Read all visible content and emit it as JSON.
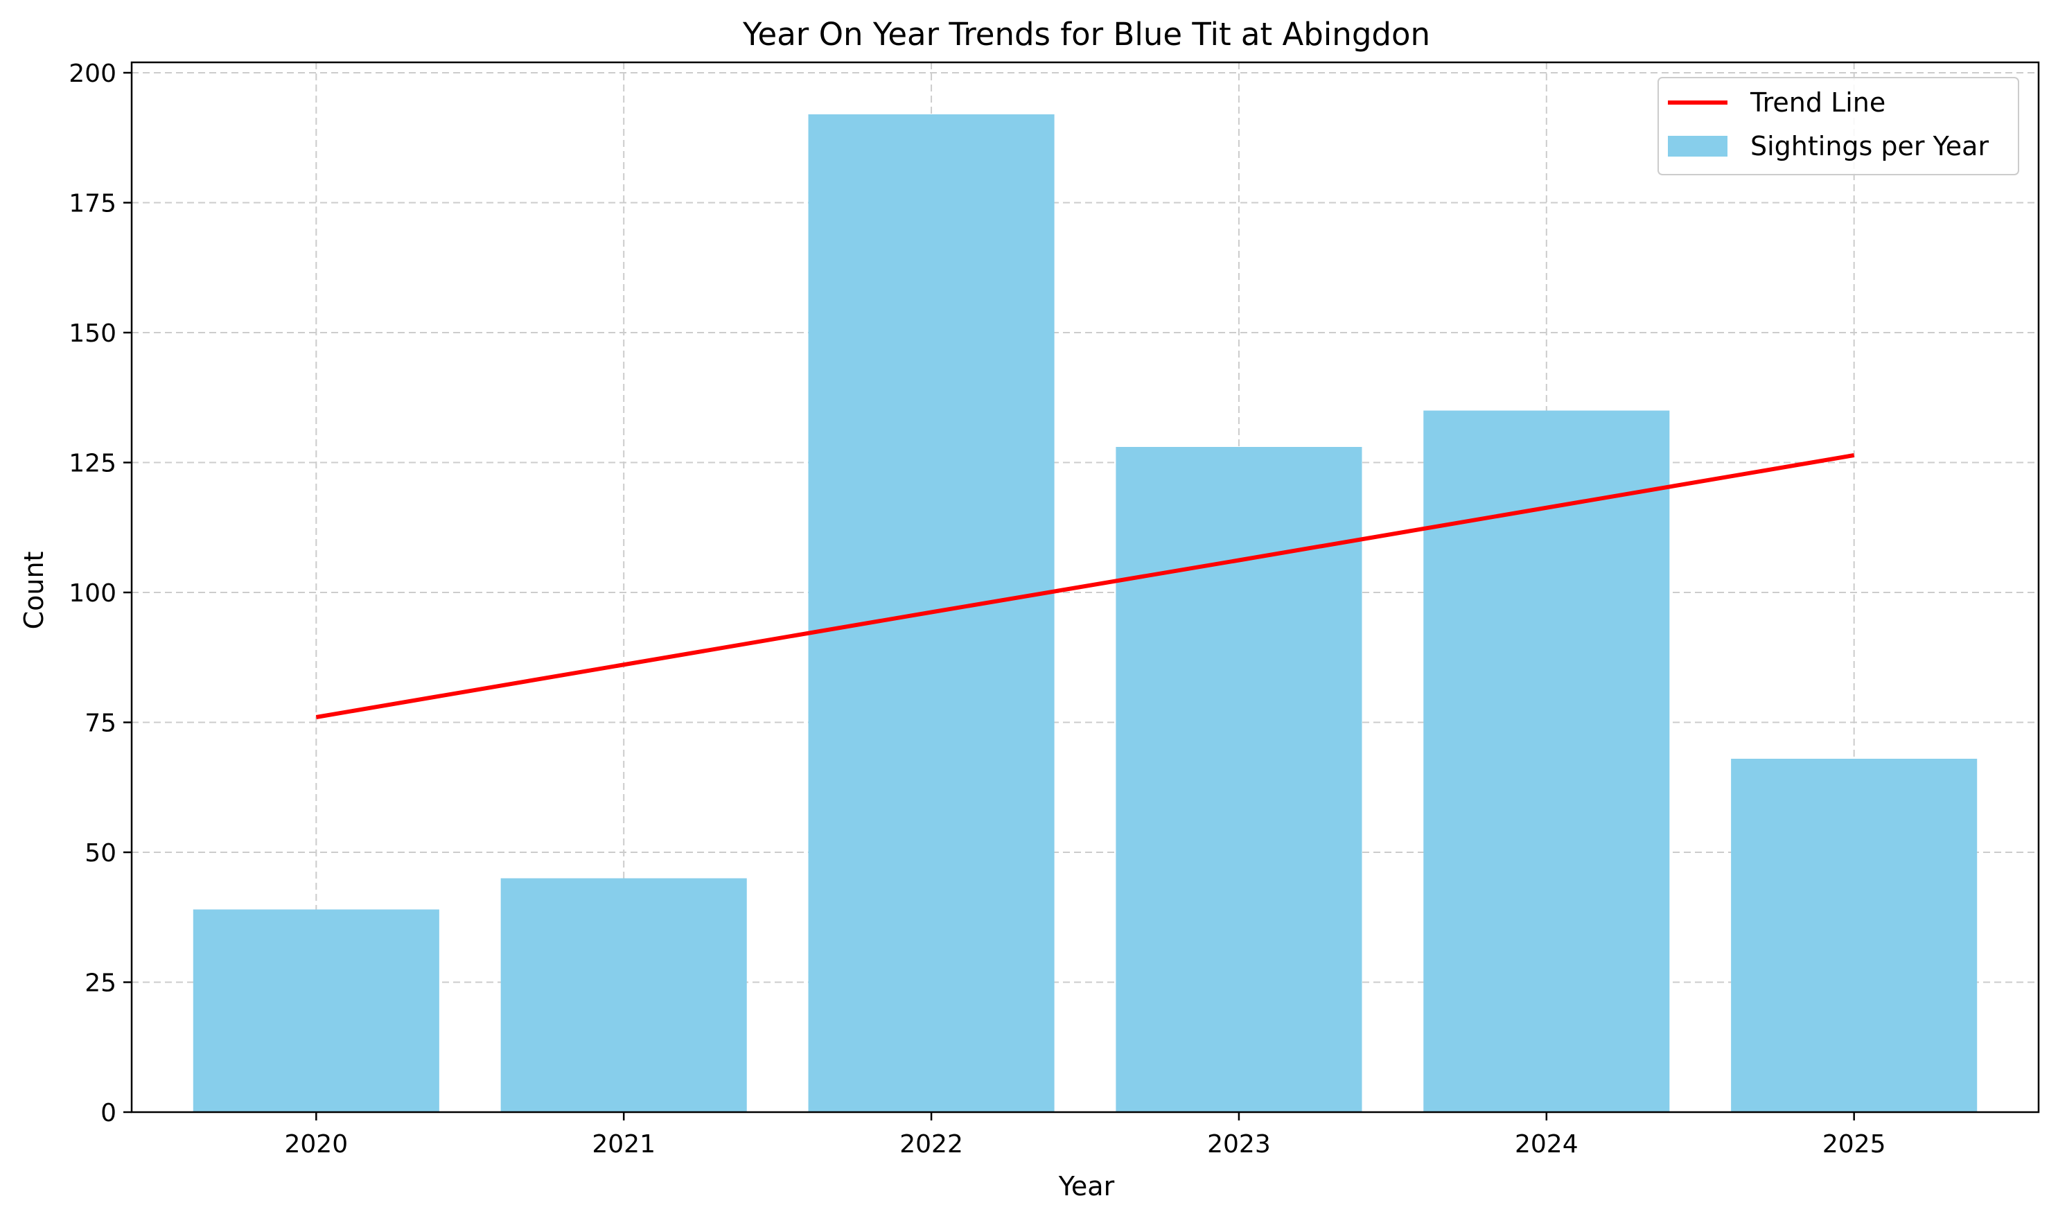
{
  "chart_data": {
    "type": "bar",
    "title": "Year On Year Trends for Blue Tit at Abingdon",
    "xlabel": "Year",
    "ylabel": "Count",
    "categories": [
      "2020",
      "2021",
      "2022",
      "2023",
      "2024",
      "2025"
    ],
    "series": [
      {
        "name": "Sightings per Year",
        "type": "bar",
        "values": [
          39,
          45,
          192,
          128,
          135,
          68
        ],
        "color": "#87CEEB"
      },
      {
        "name": "Trend Line",
        "type": "line",
        "values": [
          76,
          86.1,
          96.2,
          106.2,
          116.3,
          126.4
        ],
        "color": "#FF0000"
      }
    ],
    "ylim": [
      0,
      202
    ],
    "yticks": [
      0,
      25,
      50,
      75,
      100,
      125,
      150,
      175,
      200
    ],
    "grid": true,
    "legend_position": "top-right"
  }
}
